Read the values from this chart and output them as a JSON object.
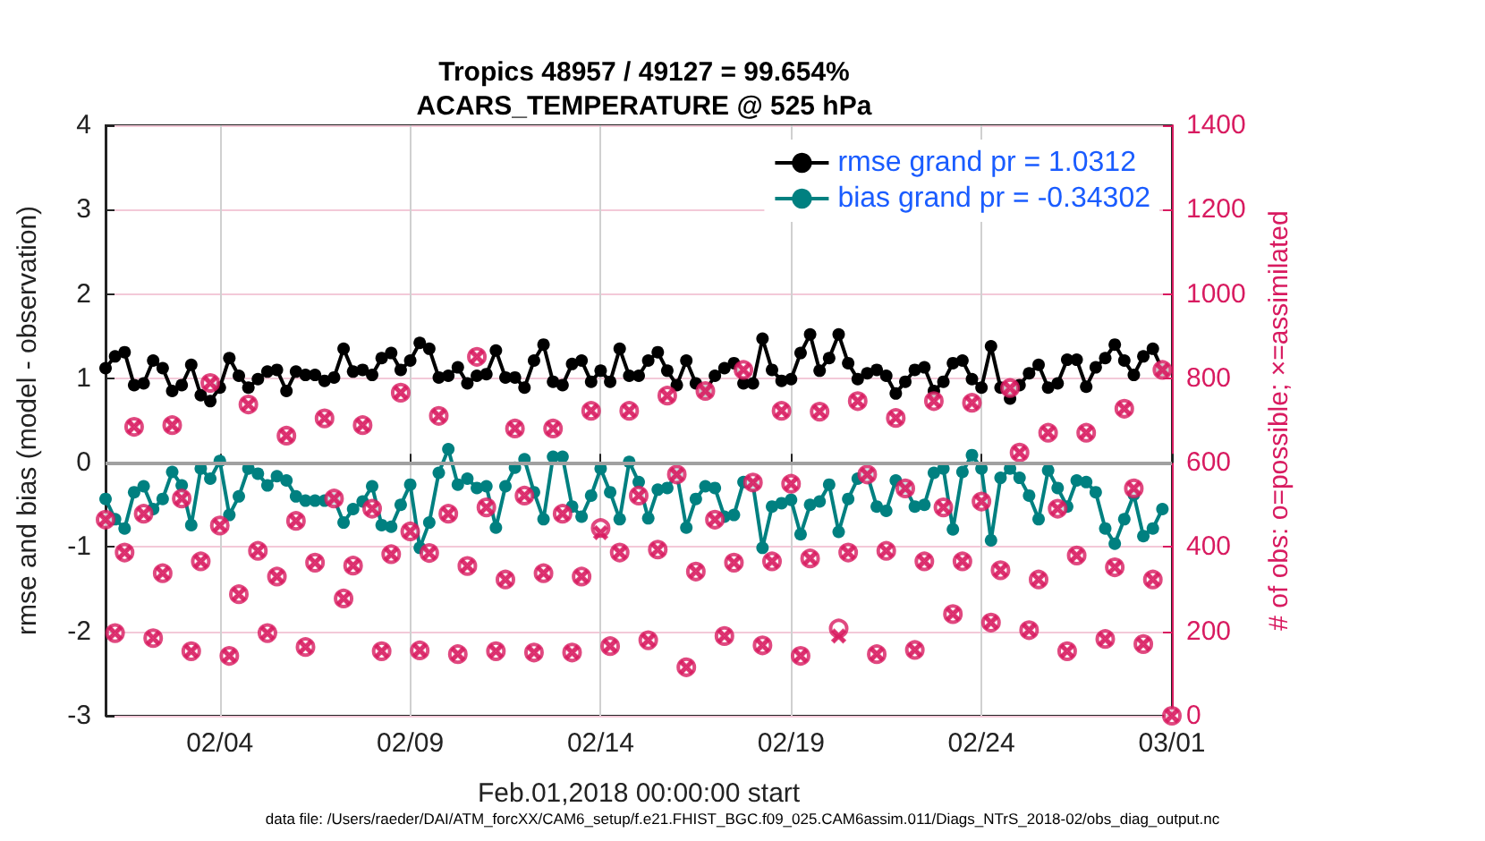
{
  "chart_data": {
    "type": "line",
    "title": "Tropics 48957 / 49127 = 99.654%",
    "subtitle": "ACARS_TEMPERATURE @ 525 hPa",
    "xlabel": "Feb.01,2018 00:00:00 start",
    "ylabel": "rmse and bias (model - observation)",
    "y2label": "# of obs: o=possible; ×=assimilated",
    "annotations": [
      "data file: /Users/raeder/DAI/ATM_forcXX/CAM6_setup/f.e21.FHIST_BGC.f09_025.CAM6assim.011/Diags_NTrS_2018-02/obs_diag_output.nc"
    ],
    "x": [
      "2018-02-01T00:00",
      "2018-02-01T06:00",
      "2018-02-01T12:00",
      "2018-02-01T18:00",
      "2018-02-02T00:00",
      "2018-02-02T06:00",
      "2018-02-02T12:00",
      "2018-02-02T18:00",
      "2018-02-03T00:00",
      "2018-02-03T06:00",
      "2018-02-03T12:00",
      "2018-02-03T18:00",
      "2018-02-04T00:00",
      "2018-02-04T06:00",
      "2018-02-04T12:00",
      "2018-02-04T18:00",
      "2018-02-05T00:00",
      "2018-02-05T06:00",
      "2018-02-05T12:00",
      "2018-02-05T18:00",
      "2018-02-06T00:00",
      "2018-02-06T06:00",
      "2018-02-06T12:00",
      "2018-02-06T18:00",
      "2018-02-07T00:00",
      "2018-02-07T06:00",
      "2018-02-07T12:00",
      "2018-02-07T18:00",
      "2018-02-08T00:00",
      "2018-02-08T06:00",
      "2018-02-08T12:00",
      "2018-02-08T18:00",
      "2018-02-09T00:00",
      "2018-02-09T06:00",
      "2018-02-09T12:00",
      "2018-02-09T18:00",
      "2018-02-10T00:00",
      "2018-02-10T06:00",
      "2018-02-10T12:00",
      "2018-02-10T18:00",
      "2018-02-11T00:00",
      "2018-02-11T06:00",
      "2018-02-11T12:00",
      "2018-02-11T18:00",
      "2018-02-12T00:00",
      "2018-02-12T06:00",
      "2018-02-12T12:00",
      "2018-02-12T18:00",
      "2018-02-13T00:00",
      "2018-02-13T06:00",
      "2018-02-13T12:00",
      "2018-02-13T18:00",
      "2018-02-14T00:00",
      "2018-02-14T06:00",
      "2018-02-14T12:00",
      "2018-02-14T18:00",
      "2018-02-15T00:00",
      "2018-02-15T06:00",
      "2018-02-15T12:00",
      "2018-02-15T18:00",
      "2018-02-16T00:00",
      "2018-02-16T06:00",
      "2018-02-16T12:00",
      "2018-02-16T18:00",
      "2018-02-17T00:00",
      "2018-02-17T06:00",
      "2018-02-17T12:00",
      "2018-02-17T18:00",
      "2018-02-18T00:00",
      "2018-02-18T06:00",
      "2018-02-18T12:00",
      "2018-02-18T18:00",
      "2018-02-19T00:00",
      "2018-02-19T06:00",
      "2018-02-19T12:00",
      "2018-02-19T18:00",
      "2018-02-20T00:00",
      "2018-02-20T06:00",
      "2018-02-20T12:00",
      "2018-02-20T18:00",
      "2018-02-21T00:00",
      "2018-02-21T06:00",
      "2018-02-21T12:00",
      "2018-02-21T18:00",
      "2018-02-22T00:00",
      "2018-02-22T06:00",
      "2018-02-22T12:00",
      "2018-02-22T18:00",
      "2018-02-23T00:00",
      "2018-02-23T06:00",
      "2018-02-23T12:00",
      "2018-02-23T18:00",
      "2018-02-24T00:00",
      "2018-02-24T06:00",
      "2018-02-24T12:00",
      "2018-02-24T18:00",
      "2018-02-25T00:00",
      "2018-02-25T06:00",
      "2018-02-25T12:00",
      "2018-02-25T18:00",
      "2018-02-26T00:00",
      "2018-02-26T06:00",
      "2018-02-26T12:00",
      "2018-02-26T18:00",
      "2018-02-27T00:00",
      "2018-02-27T06:00",
      "2018-02-27T12:00",
      "2018-02-27T18:00",
      "2018-02-28T00:00",
      "2018-02-28T06:00",
      "2018-02-28T12:00",
      "2018-02-28T18:00",
      "2018-03-01T00:00"
    ],
    "series": [
      {
        "name": "rmse grand pr = 1.0312",
        "marker": "circle",
        "color": "#000000",
        "values": [
          1.12,
          1.26,
          1.31,
          0.92,
          0.94,
          1.21,
          1.12,
          0.85,
          0.92,
          1.16,
          0.8,
          0.73,
          0.89,
          1.24,
          1.03,
          0.89,
          0.99,
          1.08,
          1.1,
          0.85,
          1.08,
          1.04,
          1.04,
          0.97,
          1.01,
          1.35,
          1.08,
          1.1,
          1.04,
          1.24,
          1.3,
          1.1,
          1.21,
          1.42,
          1.35,
          1.01,
          1.03,
          1.13,
          0.94,
          1.03,
          1.05,
          1.33,
          1.01,
          1.01,
          0.89,
          1.21,
          1.4,
          0.96,
          0.92,
          1.17,
          1.21,
          0.96,
          1.09,
          0.96,
          1.35,
          1.03,
          1.03,
          1.21,
          1.31,
          1.09,
          0.92,
          1.21,
          0.94,
          0.85,
          1.03,
          1.12,
          1.18,
          0.94,
          0.94,
          1.47,
          1.1,
          0.97,
          0.99,
          1.3,
          1.52,
          1.09,
          1.24,
          1.52,
          1.18,
          0.99,
          1.06,
          1.1,
          1.03,
          0.82,
          0.96,
          1.1,
          1.13,
          0.85,
          0.96,
          1.18,
          1.21,
          0.99,
          0.89,
          1.38,
          0.89,
          0.76,
          0.92,
          1.06,
          1.16,
          0.89,
          0.94,
          1.22,
          1.22,
          0.9,
          1.13,
          1.24,
          1.4,
          1.21,
          1.04,
          1.26,
          1.35,
          1.1,
          null
        ]
      },
      {
        "name": "bias grand pr = -0.34302",
        "marker": "circle",
        "color": "#008080",
        "values": [
          -0.43,
          -0.67,
          -0.78,
          -0.35,
          -0.28,
          -0.55,
          -0.43,
          -0.11,
          -0.27,
          -0.74,
          -0.07,
          -0.19,
          0.02,
          -0.62,
          -0.4,
          -0.07,
          -0.13,
          -0.27,
          -0.16,
          -0.21,
          -0.4,
          -0.45,
          -0.45,
          -0.45,
          -0.43,
          -0.71,
          -0.55,
          -0.46,
          -0.28,
          -0.74,
          -0.76,
          -0.5,
          -0.26,
          -1.01,
          -0.71,
          -0.12,
          0.16,
          -0.26,
          -0.19,
          -0.3,
          -0.28,
          -0.77,
          -0.28,
          -0.06,
          0.04,
          -0.35,
          -0.67,
          0.07,
          0.07,
          -0.52,
          -0.64,
          -0.39,
          -0.07,
          -0.35,
          -0.67,
          0.01,
          -0.23,
          -0.66,
          -0.32,
          -0.3,
          -0.13,
          -0.77,
          -0.43,
          -0.28,
          -0.3,
          -0.64,
          -0.62,
          -0.23,
          -0.26,
          -1.01,
          -0.52,
          -0.48,
          -0.44,
          -0.85,
          -0.5,
          -0.46,
          -0.26,
          -0.82,
          -0.43,
          -0.19,
          -0.14,
          -0.52,
          -0.57,
          -0.21,
          -0.3,
          -0.52,
          -0.5,
          -0.12,
          -0.07,
          -0.79,
          -0.11,
          0.09,
          -0.07,
          -0.92,
          -0.18,
          -0.07,
          -0.18,
          -0.39,
          -0.67,
          -0.09,
          -0.3,
          -0.52,
          -0.21,
          -0.23,
          -0.35,
          -0.78,
          -0.96,
          -0.67,
          -0.38,
          -0.87,
          -0.78,
          -0.55,
          null
        ]
      },
      {
        "type": "scatter",
        "marker": "circle",
        "axis": "y2",
        "color": "#d81b60",
        "values": [
          465,
          196,
          387,
          685,
          479,
          184,
          338,
          689,
          515,
          153,
          366,
          789,
          451,
          142,
          288,
          738,
          391,
          196,
          330,
          664,
          462,
          163,
          363,
          705,
          515,
          278,
          356,
          689,
          491,
          153,
          383,
          766,
          437,
          155,
          386,
          711,
          479,
          146,
          355,
          851,
          494,
          153,
          323,
          681,
          522,
          150,
          338,
          681,
          479,
          150,
          330,
          723,
          445,
          165,
          387,
          723,
          522,
          179,
          394,
          759,
          572,
          115,
          342,
          770,
          465,
          189,
          363,
          820,
          553,
          167,
          366,
          723,
          550,
          142,
          373,
          721,
          null,
          207,
          387,
          746,
          572,
          146,
          391,
          706,
          539,
          156,
          366,
          746,
          494,
          241,
          366,
          742,
          508,
          221,
          345,
          777,
          624,
          203,
          323,
          671,
          491,
          153,
          380,
          671,
          null,
          182,
          352,
          728,
          539,
          170,
          323,
          820,
          0
        ]
      },
      {
        "type": "scatter",
        "marker": "cross",
        "axis": "y2",
        "color": "#d81b60",
        "values": [
          465,
          196,
          387,
          685,
          479,
          184,
          338,
          689,
          515,
          153,
          366,
          789,
          451,
          142,
          288,
          738,
          391,
          196,
          330,
          664,
          462,
          163,
          363,
          705,
          515,
          278,
          356,
          689,
          491,
          153,
          383,
          766,
          437,
          155,
          386,
          711,
          479,
          146,
          355,
          851,
          494,
          153,
          323,
          681,
          522,
          150,
          338,
          681,
          479,
          150,
          330,
          723,
          434,
          165,
          387,
          723,
          522,
          179,
          394,
          759,
          572,
          115,
          342,
          770,
          465,
          189,
          363,
          820,
          553,
          167,
          366,
          723,
          550,
          142,
          373,
          721,
          null,
          189,
          387,
          746,
          572,
          146,
          391,
          706,
          539,
          156,
          366,
          746,
          494,
          241,
          366,
          742,
          508,
          221,
          345,
          777,
          624,
          203,
          323,
          671,
          491,
          153,
          380,
          671,
          null,
          182,
          352,
          728,
          539,
          170,
          323,
          820,
          0
        ]
      }
    ],
    "xlim": [
      "2018-02-01",
      "2018-03-01"
    ],
    "xticks": [
      {
        "value": "2018-02-04",
        "label": "02/04"
      },
      {
        "value": "2018-02-09",
        "label": "02/09"
      },
      {
        "value": "2018-02-14",
        "label": "02/14"
      },
      {
        "value": "2018-02-19",
        "label": "02/19"
      },
      {
        "value": "2018-02-24",
        "label": "02/24"
      },
      {
        "value": "2018-03-01",
        "label": "03/01"
      }
    ],
    "ylim": [
      -3,
      4
    ],
    "yticks": [
      -3,
      -2,
      -1,
      0,
      1,
      2,
      3,
      4
    ],
    "y2lim": [
      0,
      1400
    ],
    "y2ticks": [
      0,
      200,
      400,
      600,
      800,
      1000,
      1200,
      1400
    ],
    "ref_lines": [
      {
        "axis": "y",
        "value": 0,
        "color": "#a0a0a0"
      }
    ],
    "grid": true,
    "legend": "top right"
  }
}
